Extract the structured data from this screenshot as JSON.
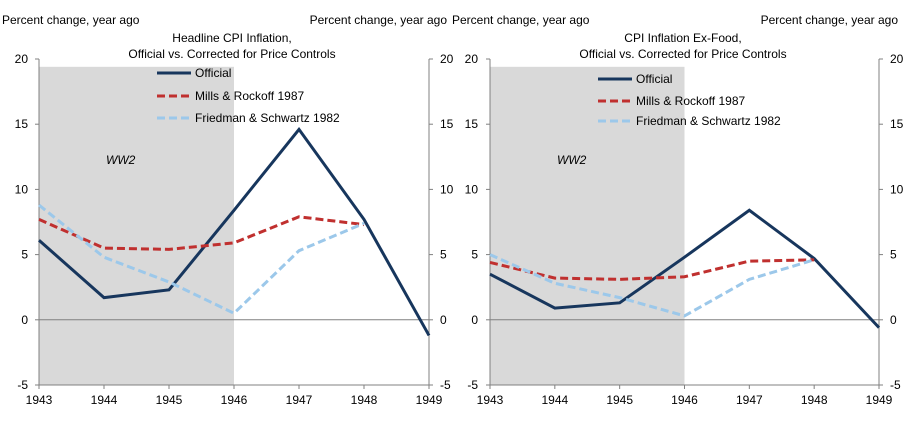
{
  "chart_data": [
    {
      "type": "line",
      "title": "Headline CPI Inflation,",
      "subtitle": "Official vs. Corrected for Price Controls",
      "ylabel_left": "Percent change, year ago",
      "ylabel_right": "Percent change, year ago",
      "x": [
        1943,
        1944,
        1945,
        1946,
        1947,
        1948,
        1949
      ],
      "x_ticks": [
        "1943",
        "1944",
        "1945",
        "1946",
        "1947",
        "1948",
        "1949"
      ],
      "ylim": [
        -5,
        20
      ],
      "y_ticks": [
        "-5",
        "0",
        "5",
        "10",
        "15",
        "20"
      ],
      "shaded_region": {
        "label": "WW2",
        "x_start": 1943,
        "x_end": 1946,
        "y_top": 19.4
      },
      "series": [
        {
          "name": "Official",
          "color": "#17365d",
          "style": "solid",
          "values": [
            6.1,
            1.7,
            2.3,
            8.4,
            14.6,
            7.7,
            -1.2
          ]
        },
        {
          "name": "Mills & Rockoff 1987",
          "color": "#c0302f",
          "style": "dashed",
          "values": [
            7.7,
            5.5,
            5.4,
            5.9,
            7.9,
            7.3,
            null
          ]
        },
        {
          "name": "Friedman & Schwartz 1982",
          "color": "#9cc8ea",
          "style": "dashed",
          "values": [
            8.8,
            4.8,
            2.9,
            0.5,
            5.3,
            7.4,
            null
          ]
        }
      ]
    },
    {
      "type": "line",
      "title": "CPI Inflation Ex-Food,",
      "subtitle": "Official vs. Corrected for Price Controls",
      "ylabel_left": "Percent change, year ago",
      "ylabel_right": "Percent change, year ago",
      "x": [
        1943,
        1944,
        1945,
        1946,
        1947,
        1948,
        1949
      ],
      "x_ticks": [
        "1943",
        "1944",
        "1945",
        "1946",
        "1947",
        "1948",
        "1949"
      ],
      "ylim": [
        -5,
        20
      ],
      "y_ticks": [
        "-5",
        "0",
        "5",
        "10",
        "15",
        "20"
      ],
      "shaded_region": {
        "label": "WW2",
        "x_start": 1943,
        "x_end": 1946,
        "y_top": 19.4
      },
      "series": [
        {
          "name": "Official",
          "color": "#17365d",
          "style": "solid",
          "values": [
            3.5,
            0.9,
            1.3,
            4.8,
            8.4,
            4.7,
            -0.6
          ]
        },
        {
          "name": "Mills & Rockoff 1987",
          "color": "#c0302f",
          "style": "dashed",
          "values": [
            4.4,
            3.2,
            3.1,
            3.3,
            4.5,
            4.6,
            null
          ]
        },
        {
          "name": "Friedman & Schwartz 1982",
          "color": "#9cc8ea",
          "style": "dashed",
          "values": [
            5.0,
            2.8,
            1.7,
            0.3,
            3.1,
            4.6,
            null
          ]
        }
      ]
    }
  ]
}
